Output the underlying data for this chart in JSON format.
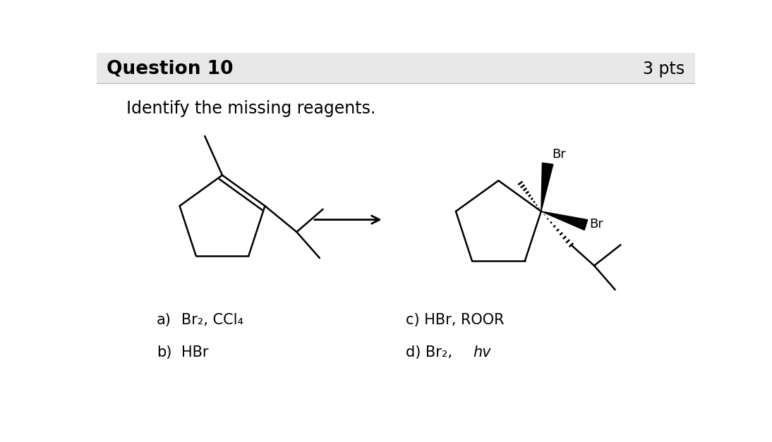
{
  "title": "Question 10",
  "pts": "3 pts",
  "question": "Identify the missing reagents.",
  "bg_header": "#e8e8e8",
  "bg_main": "#ffffff",
  "line_color": "#000000",
  "text_color": "#000000",
  "header_line_color": "#cccccc"
}
